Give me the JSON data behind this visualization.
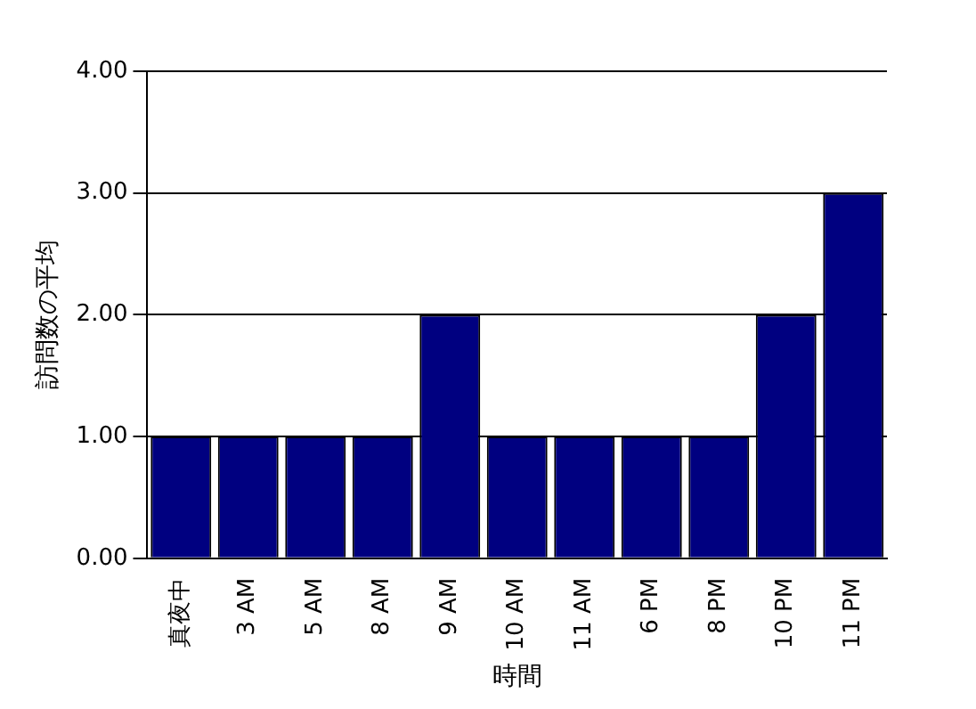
{
  "chart_data": {
    "type": "bar",
    "xlabel": "時間",
    "ylabel": "訪問数の平均",
    "categories": [
      "真夜中",
      "3 AM",
      "5 AM",
      "8 AM",
      "9 AM",
      "10 AM",
      "11 AM",
      "6 PM",
      "8 PM",
      "10 PM",
      "11 PM"
    ],
    "values": [
      1,
      1,
      1,
      1,
      2,
      1,
      1,
      1,
      1,
      2,
      3
    ],
    "color": "#000080",
    "ylim": [
      0,
      4
    ],
    "yticks": [
      {
        "value": 0,
        "label": "0.00"
      },
      {
        "value": 1,
        "label": "1.00"
      },
      {
        "value": 2,
        "label": "2.00"
      },
      {
        "value": 3,
        "label": "3.00"
      },
      {
        "value": 4,
        "label": "4.00"
      }
    ],
    "grid": "y",
    "legend": false
  }
}
